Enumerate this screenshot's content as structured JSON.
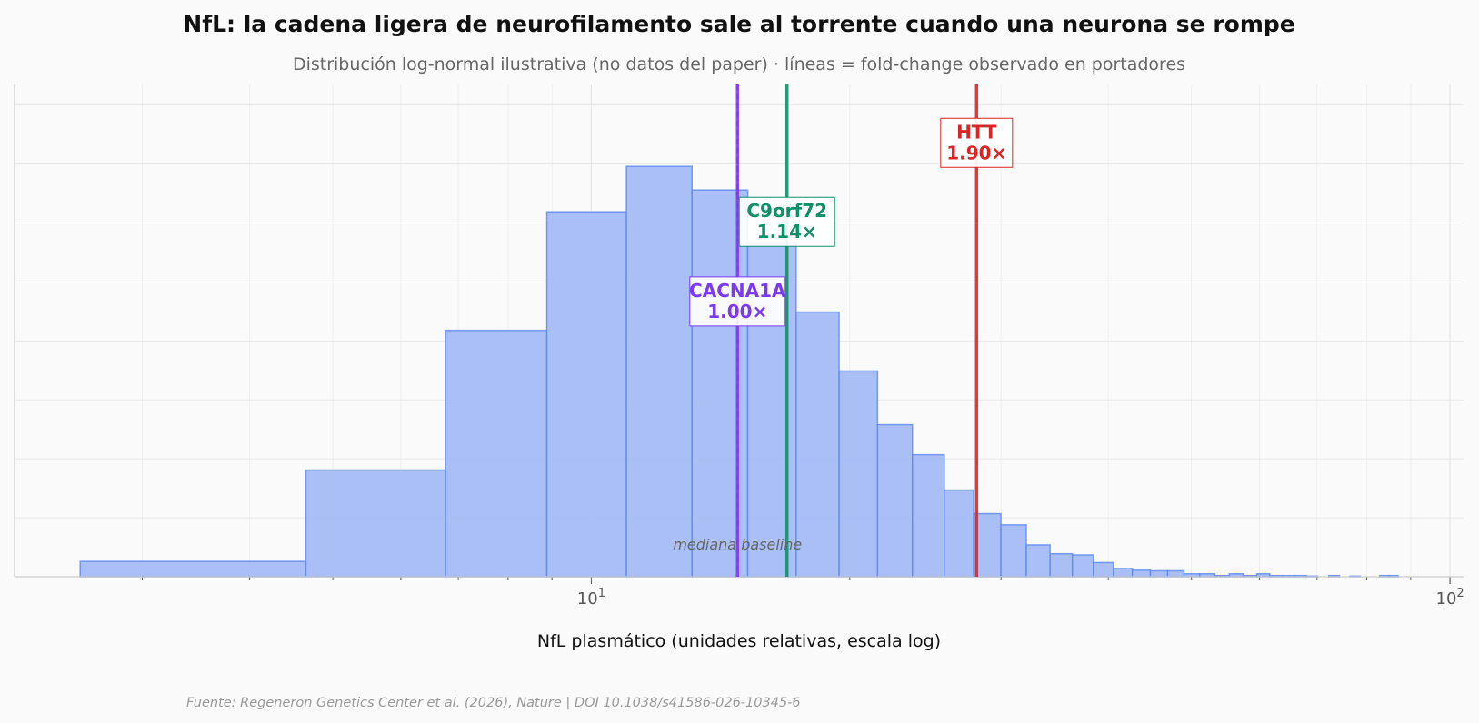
{
  "chart_data": {
    "type": "bar",
    "title": "NfL: la cadena ligera de neurofilamento sale al torrente cuando una neurona se rompe",
    "subtitle": "Distribución log-normal ilustrativa (no datos del paper) · líneas = fold-change observado en portadores",
    "xlabel": "NfL plasmático (unidades relativas, escala log)",
    "ylabel": "",
    "x_scale": "log",
    "xlim": [
      2.13,
      103.7
    ],
    "ylim": [
      0,
      8.35
    ],
    "grid": true,
    "x_tick_labels": [
      {
        "value": 10,
        "base": "10",
        "exp": "1"
      },
      {
        "value": 100,
        "base": "10",
        "exp": "2"
      }
    ],
    "histogram": {
      "bin_start": 2.54,
      "bin_width": 2.112,
      "heights": [
        0.26,
        1.81,
        4.18,
        6.19,
        6.96,
        6.56,
        5.67,
        4.49,
        3.49,
        2.58,
        2.07,
        1.47,
        1.07,
        0.88,
        0.54,
        0.39,
        0.37,
        0.24,
        0.14,
        0.11,
        0.1,
        0.1,
        0.05,
        0.05,
        0.02,
        0.05,
        0.02,
        0.05,
        0.02,
        0.02,
        0.02,
        0.01,
        0.0,
        0.02,
        0.0,
        0.01,
        0.0,
        0.0,
        0.02,
        0.02
      ],
      "fill": "#a4bcf5",
      "edge": "#5b87f0"
    },
    "baseline_median": {
      "value": 14.8,
      "label": "mediana baseline",
      "color": "#888888"
    },
    "markers": [
      {
        "gene": "CACNA1A",
        "fold": "1.00×",
        "value": 14.8,
        "color": "#7c3aed",
        "label_y": 4.67
      },
      {
        "gene": "C9orf72",
        "fold": "1.14×",
        "value": 16.9,
        "color": "#0f9068",
        "label_y": 6.02
      },
      {
        "gene": "HTT",
        "fold": "1.90×",
        "value": 28.1,
        "color": "#dc2626",
        "label_y": 7.36
      }
    ]
  },
  "footer": "Fuente: Regeneron Genetics Center et al. (2026), Nature | DOI 10.1038/s41586-026-10345-6"
}
